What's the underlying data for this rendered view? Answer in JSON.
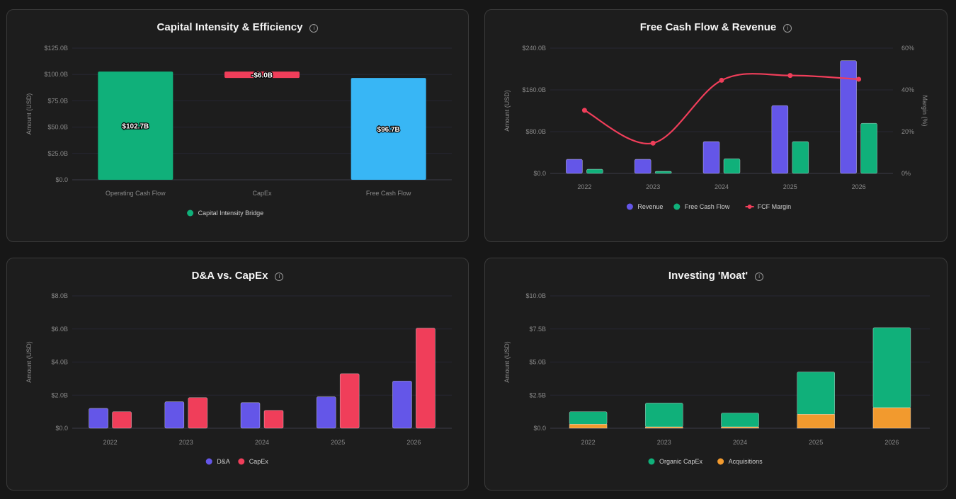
{
  "chart_data": [
    {
      "type": "bar",
      "title": "Capital Intensity & Efficiency",
      "ylabel": "Amount (USD)",
      "ylim": [
        0,
        125
      ],
      "yticks": [
        "$0.0",
        "$25.0B",
        "$50.0B",
        "$75.0B",
        "$100.0B",
        "$125.0B"
      ],
      "categories": [
        "Operating Cash Flow",
        "CapEx",
        "Free Cash Flow"
      ],
      "series": [
        {
          "name": "Capital Intensity Bridge",
          "values": [
            102.7,
            -6.0,
            96.7
          ]
        }
      ],
      "data_labels": [
        "$102.7B",
        "-$6.0B",
        "$96.7B"
      ],
      "legend": "bottom",
      "colors": {
        "Operating Cash Flow": "#10b07a",
        "CapEx": "#f03e5a",
        "Free Cash Flow": "#38b6f5",
        "legend": "#10b07a"
      }
    },
    {
      "type": "bar",
      "title": "Free Cash Flow & Revenue",
      "ylabel": "Amount (USD)",
      "y2label": "Margin (%)",
      "ylim": [
        0,
        240
      ],
      "y2lim": [
        0,
        60
      ],
      "yticks": [
        "$0.0",
        "$80.0B",
        "$160.0B",
        "$240.0B"
      ],
      "y2ticks": [
        "0%",
        "20%",
        "40%",
        "60%"
      ],
      "categories": [
        "2022",
        "2023",
        "2024",
        "2025",
        "2026"
      ],
      "series": [
        {
          "name": "Revenue",
          "type": "bar",
          "color": "#6456e8",
          "values": [
            27,
            27,
            61,
            130,
            216
          ]
        },
        {
          "name": "Free Cash Flow",
          "type": "bar",
          "color": "#10b07a",
          "values": [
            8,
            4,
            28,
            61,
            96
          ]
        },
        {
          "name": "FCF Margin",
          "type": "line",
          "axis": "right",
          "color": "#f03e5a",
          "values": [
            30.2,
            14.5,
            44.6,
            46.9,
            45.1
          ]
        }
      ],
      "legend": "bottom"
    },
    {
      "type": "bar",
      "title": "D&A vs. CapEx",
      "ylabel": "Amount (USD)",
      "ylim": [
        0,
        8
      ],
      "yticks": [
        "$0.0",
        "$2.0B",
        "$4.0B",
        "$6.0B",
        "$8.0B"
      ],
      "categories": [
        "2022",
        "2023",
        "2024",
        "2025",
        "2026"
      ],
      "series": [
        {
          "name": "D&A",
          "color": "#6456e8",
          "values": [
            1.2,
            1.6,
            1.55,
            1.9,
            2.85
          ]
        },
        {
          "name": "CapEx",
          "color": "#f03e5a",
          "values": [
            1.0,
            1.85,
            1.08,
            3.3,
            6.05
          ]
        }
      ],
      "legend": "bottom"
    },
    {
      "type": "bar",
      "stacked": true,
      "title": "Investing 'Moat'",
      "ylabel": "Amount (USD)",
      "ylim": [
        0,
        10
      ],
      "yticks": [
        "$0.0",
        "$2.5B",
        "$5.0B",
        "$7.5B",
        "$10.0B"
      ],
      "categories": [
        "2022",
        "2023",
        "2024",
        "2025",
        "2026"
      ],
      "series": [
        {
          "name": "Organic CapEx",
          "color": "#10b07a",
          "values": [
            0.95,
            1.8,
            1.05,
            3.2,
            6.05
          ]
        },
        {
          "name": "Acquisitions",
          "color": "#f29a2e",
          "values": [
            0.3,
            0.1,
            0.1,
            1.05,
            1.55
          ]
        }
      ],
      "legend": "bottom"
    }
  ]
}
